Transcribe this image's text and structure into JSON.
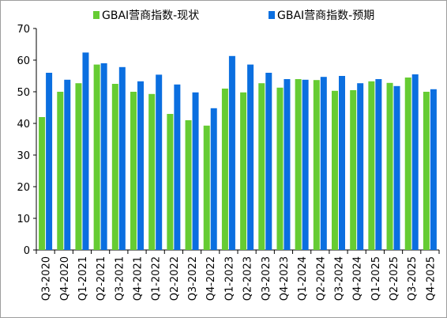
{
  "chart_data": {
    "type": "bar",
    "categories": [
      "Q3-2020",
      "Q4-2020",
      "Q1-2021",
      "Q2-2021",
      "Q3-2021",
      "Q4-2021",
      "Q1-2022",
      "Q2-2022",
      "Q3-2022",
      "Q4-2022",
      "Q1-2023",
      "Q2-2023",
      "Q3-2023",
      "Q4-2023",
      "Q1-2024",
      "Q2-2024",
      "Q3-2024",
      "Q4-2024",
      "Q1-2025",
      "Q2-2025",
      "Q3-2025",
      "Q4-2025"
    ],
    "series": [
      {
        "name": "GBAI营商指数-现状",
        "color": "#66cc33",
        "values": [
          42,
          50,
          52.7,
          58.6,
          52.5,
          50,
          49.3,
          43,
          41,
          39.3,
          51,
          49.8,
          52.7,
          51.3,
          54,
          53.7,
          50.3,
          50.5,
          53.3,
          52.8,
          54.5,
          50
        ]
      },
      {
        "name": "GBAI营商指数-预期",
        "color": "#0b6fe0",
        "values": [
          56,
          53.8,
          62.4,
          59,
          57.8,
          53.3,
          55.4,
          52.3,
          49.8,
          44.8,
          61.3,
          58.6,
          56,
          54,
          53.8,
          54.7,
          55,
          52.7,
          54,
          51.8,
          55.5,
          50.8
        ]
      }
    ],
    "ylim": [
      0,
      70
    ],
    "yticks": [
      0,
      10,
      20,
      30,
      40,
      50,
      60,
      70
    ],
    "xlabel": "",
    "ylabel": "",
    "legend_position": "top",
    "grid": false
  }
}
